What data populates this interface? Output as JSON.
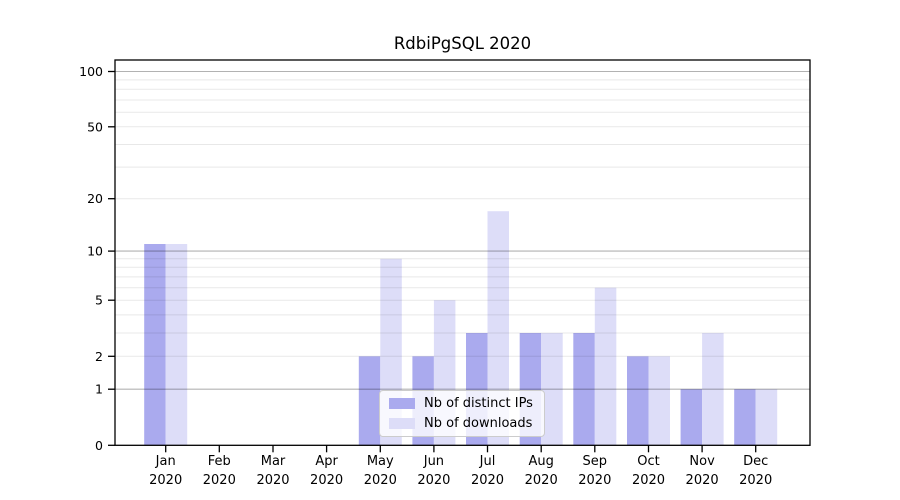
{
  "chart_data": {
    "type": "bar",
    "title": "RdbiPgSQL 2020",
    "categories": [
      {
        "month": "Jan",
        "year": "2020"
      },
      {
        "month": "Feb",
        "year": "2020"
      },
      {
        "month": "Mar",
        "year": "2020"
      },
      {
        "month": "Apr",
        "year": "2020"
      },
      {
        "month": "May",
        "year": "2020"
      },
      {
        "month": "Jun",
        "year": "2020"
      },
      {
        "month": "Jul",
        "year": "2020"
      },
      {
        "month": "Aug",
        "year": "2020"
      },
      {
        "month": "Sep",
        "year": "2020"
      },
      {
        "month": "Oct",
        "year": "2020"
      },
      {
        "month": "Nov",
        "year": "2020"
      },
      {
        "month": "Dec",
        "year": "2020"
      }
    ],
    "series": [
      {
        "name": "Nb of distinct IPs",
        "color": "#aaaaee",
        "values": [
          11,
          0,
          0,
          0,
          2,
          2,
          3,
          3,
          3,
          2,
          1,
          1
        ]
      },
      {
        "name": "Nb of downloads",
        "color": "#ddddf8",
        "values": [
          11,
          0,
          0,
          0,
          9,
          5,
          17,
          3,
          6,
          2,
          3,
          1
        ]
      }
    ],
    "y_axis": {
      "scale": "log1p",
      "ylim": [
        0,
        115
      ],
      "tick_values": [
        0,
        1,
        2,
        5,
        10,
        20,
        50,
        100
      ],
      "tick_labels": [
        "0",
        "1",
        "2",
        "5",
        "10",
        "20",
        "50",
        "100"
      ],
      "major_gridlines": [
        1,
        10,
        100
      ],
      "minor_gridlines": [
        2,
        3,
        4,
        5,
        6,
        7,
        8,
        9,
        20,
        30,
        40,
        50,
        60,
        70,
        80,
        90
      ]
    },
    "grid": "horizontal",
    "legend_position": "lower center"
  },
  "colors": {
    "background": "#ffffff",
    "axis": "#000000",
    "tick_text": "#000000",
    "grid_major": "rgba(0,0,0,0.30)",
    "grid_minor": "rgba(0,0,0,0.09)",
    "legend_border": "#cccccc"
  }
}
